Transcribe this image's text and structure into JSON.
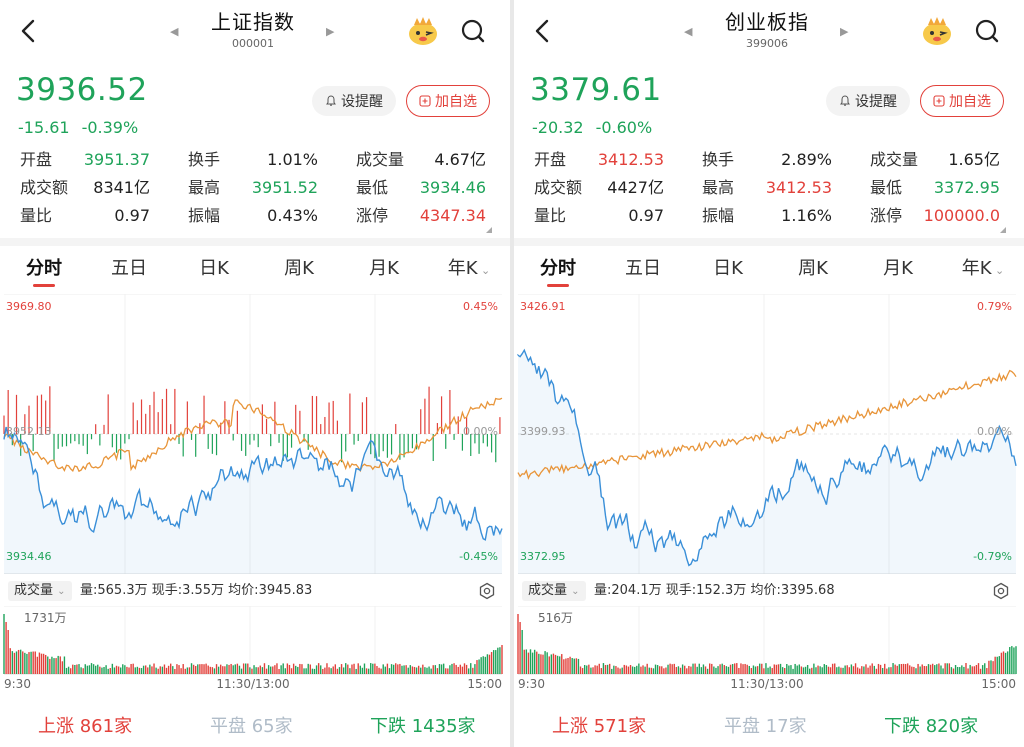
{
  "panels": [
    {
      "title": "上证指数",
      "code": "000001",
      "price": "3936.52",
      "change": "-15.61",
      "change_pct": "-0.39%",
      "price_color": "#1fa35a",
      "alert_label": "设提醒",
      "add_label": "加自选",
      "stats": [
        {
          "label": "开盘",
          "value": "3951.37",
          "color": "#1fa35a"
        },
        {
          "label": "换手",
          "value": "1.01%",
          "color": "#222222"
        },
        {
          "label": "成交量",
          "value": "4.67亿",
          "color": "#222222"
        },
        {
          "label": "成交额",
          "value": "8341亿",
          "color": "#222222"
        },
        {
          "label": "最高",
          "value": "3951.52",
          "color": "#1fa35a"
        },
        {
          "label": "最低",
          "value": "3934.46",
          "color": "#1fa35a"
        },
        {
          "label": "量比",
          "value": "0.97",
          "color": "#222222"
        },
        {
          "label": "振幅",
          "value": "0.43%",
          "color": "#222222"
        },
        {
          "label": "涨停",
          "value": "4347.34",
          "color": "#e2413b"
        }
      ],
      "tabs": [
        "分时",
        "五日",
        "日K",
        "周K",
        "月K",
        "年K"
      ],
      "chart": {
        "y_max": "3969.80",
        "y_min": "3934.46",
        "y_mid": "3952.13",
        "pct_max": "0.45%",
        "pct_mid": "0.00%",
        "pct_min": "-0.45%"
      },
      "volume_selector": "成交量",
      "volume_info": "量:565.3万  现手:3.55万  均价:3945.83",
      "vol_max_label": "1731万",
      "time_start": "9:30",
      "time_mid": "11:30/13:00",
      "time_end": "15:00",
      "up_label": "上涨",
      "up_count": "861家",
      "flat_label": "平盘",
      "flat_count": "65家",
      "down_label": "下跌",
      "down_count": "1435家"
    },
    {
      "title": "创业板指",
      "code": "399006",
      "price": "3379.61",
      "change": "-20.32",
      "change_pct": "-0.60%",
      "price_color": "#1fa35a",
      "alert_label": "设提醒",
      "add_label": "加自选",
      "stats": [
        {
          "label": "开盘",
          "value": "3412.53",
          "color": "#e2413b"
        },
        {
          "label": "换手",
          "value": "2.89%",
          "color": "#222222"
        },
        {
          "label": "成交量",
          "value": "1.65亿",
          "color": "#222222"
        },
        {
          "label": "成交额",
          "value": "4427亿",
          "color": "#222222"
        },
        {
          "label": "最高",
          "value": "3412.53",
          "color": "#e2413b"
        },
        {
          "label": "最低",
          "value": "3372.95",
          "color": "#1fa35a"
        },
        {
          "label": "量比",
          "value": "0.97",
          "color": "#222222"
        },
        {
          "label": "振幅",
          "value": "1.16%",
          "color": "#222222"
        },
        {
          "label": "涨停",
          "value": "100000.0",
          "color": "#e2413b"
        }
      ],
      "tabs": [
        "分时",
        "五日",
        "日K",
        "周K",
        "月K",
        "年K"
      ],
      "chart": {
        "y_max": "3426.91",
        "y_min": "3372.95",
        "y_mid": "3399.93",
        "pct_max": "0.79%",
        "pct_mid": "0.00%",
        "pct_min": "-0.79%"
      },
      "volume_selector": "成交量",
      "volume_info": "量:204.1万  现手:152.3万  均价:3395.68",
      "vol_max_label": "516万",
      "time_start": "9:30",
      "time_mid": "11:30/13:00",
      "time_end": "15:00",
      "up_label": "上涨",
      "up_count": "571家",
      "flat_label": "平盘",
      "flat_count": "17家",
      "down_label": "下跌",
      "down_count": "820家"
    }
  ],
  "colors": {
    "up": "#e2413b",
    "down": "#1fa35a",
    "price_line": "#3a8fd8",
    "avg_line": "#e8953a",
    "flat": "#b0bcc8"
  },
  "icons": [
    "back-arrow-icon",
    "caret-left-icon",
    "caret-right-icon",
    "mascot-icon",
    "search-icon",
    "bell-icon",
    "plus-box-icon",
    "chevron-down-icon",
    "gear-icon"
  ]
}
